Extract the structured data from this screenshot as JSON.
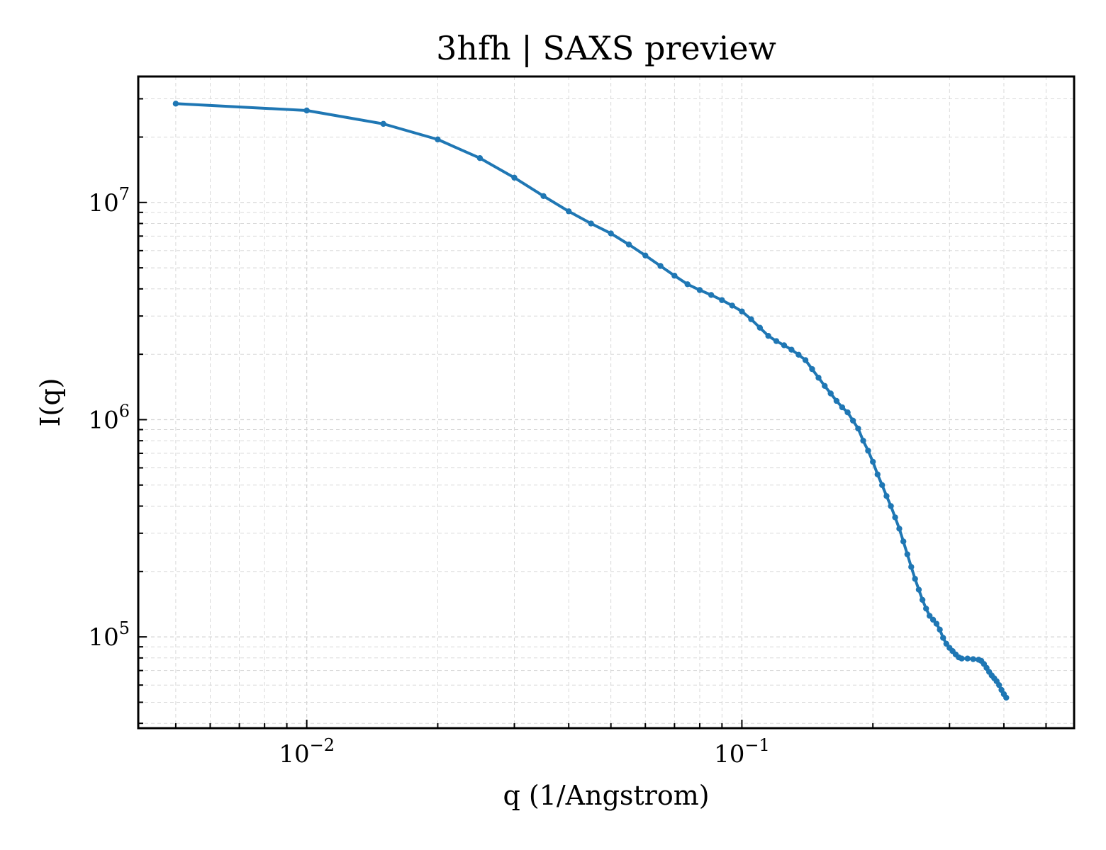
{
  "chart_data": {
    "type": "line",
    "title": "3hfh | SAXS preview",
    "xlabel": "q (1/Angstrom)",
    "ylabel": "I(q)",
    "x_scale": "log",
    "y_scale": "log",
    "xlim": [
      0.0041,
      0.58
    ],
    "ylim": [
      38000,
      38000000
    ],
    "x_ticks": [
      {
        "value": 0.01,
        "base": "10",
        "exp": "−2"
      },
      {
        "value": 0.1,
        "base": "10",
        "exp": "−1"
      }
    ],
    "y_ticks": [
      {
        "value": 100000,
        "base": "10",
        "exp": "5"
      },
      {
        "value": 1000000,
        "base": "10",
        "exp": "6"
      },
      {
        "value": 10000000,
        "base": "10",
        "exp": "7"
      }
    ],
    "grid": true,
    "legend": "none",
    "colors": {
      "series": "#1f77b4",
      "grid": "#d4d4d4",
      "frame": "#000000"
    },
    "series": [
      {
        "marker": "dot",
        "points": [
          [
            0.005,
            28500000
          ],
          [
            0.01,
            26500000
          ],
          [
            0.015,
            23000000
          ],
          [
            0.02,
            19500000
          ],
          [
            0.025,
            16000000
          ],
          [
            0.03,
            13000000
          ],
          [
            0.035,
            10700000
          ],
          [
            0.04,
            9100000
          ],
          [
            0.045,
            8000000
          ],
          [
            0.05,
            7200000
          ],
          [
            0.055,
            6400000
          ],
          [
            0.06,
            5700000
          ],
          [
            0.065,
            5100000
          ],
          [
            0.07,
            4600000
          ],
          [
            0.075,
            4200000
          ],
          [
            0.08,
            3950000
          ],
          [
            0.085,
            3750000
          ],
          [
            0.09,
            3550000
          ],
          [
            0.095,
            3350000
          ],
          [
            0.1,
            3150000
          ],
          [
            0.105,
            2900000
          ],
          [
            0.11,
            2650000
          ],
          [
            0.115,
            2430000
          ],
          [
            0.12,
            2300000
          ],
          [
            0.125,
            2200000
          ],
          [
            0.13,
            2100000
          ],
          [
            0.135,
            1990000
          ],
          [
            0.14,
            1880000
          ],
          [
            0.145,
            1710000
          ],
          [
            0.15,
            1560000
          ],
          [
            0.155,
            1430000
          ],
          [
            0.16,
            1320000
          ],
          [
            0.165,
            1220000
          ],
          [
            0.17,
            1140000
          ],
          [
            0.175,
            1080000
          ],
          [
            0.18,
            990000
          ],
          [
            0.185,
            910000
          ],
          [
            0.19,
            800000
          ],
          [
            0.195,
            720000
          ],
          [
            0.2,
            640000
          ],
          [
            0.205,
            560000
          ],
          [
            0.21,
            500000
          ],
          [
            0.215,
            445000
          ],
          [
            0.22,
            400000
          ],
          [
            0.225,
            355000
          ],
          [
            0.23,
            315000
          ],
          [
            0.235,
            275000
          ],
          [
            0.24,
            240000
          ],
          [
            0.245,
            210000
          ],
          [
            0.25,
            185000
          ],
          [
            0.255,
            165000
          ],
          [
            0.26,
            148000
          ],
          [
            0.265,
            135000
          ],
          [
            0.27,
            125000
          ],
          [
            0.275,
            120000
          ],
          [
            0.28,
            115000
          ],
          [
            0.285,
            108000
          ],
          [
            0.29,
            99000
          ],
          [
            0.295,
            93000
          ],
          [
            0.3,
            89000
          ],
          [
            0.305,
            86000
          ],
          [
            0.31,
            83000
          ],
          [
            0.315,
            80500
          ],
          [
            0.32,
            79500
          ],
          [
            0.33,
            79500
          ],
          [
            0.34,
            79000
          ],
          [
            0.35,
            78500
          ],
          [
            0.355,
            77500
          ],
          [
            0.36,
            75000
          ],
          [
            0.365,
            72000
          ],
          [
            0.37,
            69000
          ],
          [
            0.375,
            66500
          ],
          [
            0.38,
            64500
          ],
          [
            0.385,
            62500
          ],
          [
            0.39,
            60000
          ],
          [
            0.395,
            57000
          ],
          [
            0.4,
            54500
          ],
          [
            0.405,
            52500
          ]
        ]
      }
    ]
  }
}
